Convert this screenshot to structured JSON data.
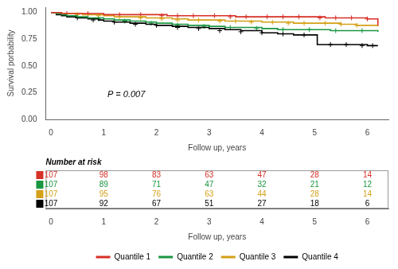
{
  "chart_data": [
    {
      "type": "line",
      "line_style": "step",
      "xlabel": "Follow up, years",
      "ylabel": "Survival porbability",
      "annotation": "P = 0.007",
      "xlim": [
        -0.1,
        6.4
      ],
      "xticks": [
        0,
        1,
        2,
        3,
        4,
        5,
        6
      ],
      "ylim": [
        0.0,
        1.05
      ],
      "yticks": [
        {
          "value": 0.0,
          "label": "0.00"
        },
        {
          "value": 0.25,
          "label": "0.25"
        },
        {
          "value": 0.5,
          "label": "0.50"
        },
        {
          "value": 0.75,
          "label": "0.75"
        },
        {
          "value": 1.0,
          "label": "1.00"
        }
      ],
      "grid": false,
      "legend": "bottom",
      "series": [
        {
          "name": "Quantile 1",
          "color": "#d73027",
          "x": [
            0.0,
            0.05,
            0.1,
            0.2,
            0.4,
            0.6,
            0.8,
            1.0,
            1.2,
            1.5,
            1.8,
            2.0,
            2.2,
            2.5,
            2.8,
            3.0,
            3.2,
            3.5,
            3.8,
            4.0,
            4.3,
            4.6,
            5.0,
            5.2,
            5.5,
            5.8,
            6.0,
            6.2
          ],
          "values": [
            1.0,
            1.0,
            1.0,
            0.99,
            0.99,
            0.99,
            0.99,
            0.98,
            0.98,
            0.98,
            0.98,
            0.98,
            0.97,
            0.97,
            0.97,
            0.97,
            0.97,
            0.96,
            0.96,
            0.96,
            0.96,
            0.96,
            0.96,
            0.95,
            0.95,
            0.95,
            0.94,
            0.88
          ],
          "censors": {
            "x": [
              0.3,
              0.7,
              1.3,
              1.7,
              2.1,
              2.4,
              2.7,
              3.1,
              3.4,
              3.7,
              4.1,
              4.4,
              4.7,
              5.1,
              5.4,
              5.7,
              6.0
            ],
            "y": [
              0.99,
              0.99,
              0.98,
              0.98,
              0.97,
              0.97,
              0.97,
              0.97,
              0.96,
              0.96,
              0.96,
              0.96,
              0.96,
              0.95,
              0.95,
              0.95,
              0.94
            ]
          }
        },
        {
          "name": "Quantile 2",
          "color": "#1a9641",
          "x": [
            0.0,
            0.1,
            0.2,
            0.3,
            0.5,
            0.7,
            1.0,
            1.2,
            1.5,
            1.8,
            2.0,
            2.3,
            2.6,
            3.0,
            3.3,
            3.6,
            4.0,
            4.3,
            4.6,
            5.0,
            5.3,
            5.6,
            6.0,
            6.2
          ],
          "values": [
            1.0,
            0.99,
            0.98,
            0.97,
            0.96,
            0.95,
            0.94,
            0.93,
            0.92,
            0.91,
            0.9,
            0.89,
            0.88,
            0.87,
            0.86,
            0.86,
            0.85,
            0.84,
            0.84,
            0.84,
            0.83,
            0.83,
            0.83,
            0.82
          ],
          "censors": {
            "x": [
              0.9,
              1.4,
              1.9,
              2.4,
              2.9,
              3.4,
              3.9,
              4.4,
              4.9,
              5.4,
              5.9
            ],
            "y": [
              0.94,
              0.92,
              0.9,
              0.88,
              0.87,
              0.86,
              0.85,
              0.84,
              0.84,
              0.83,
              0.83
            ]
          }
        },
        {
          "name": "Quantile 3",
          "color": "#d4a017",
          "x": [
            0.0,
            0.1,
            0.2,
            0.4,
            0.6,
            0.8,
            1.0,
            1.2,
            1.5,
            1.8,
            2.0,
            2.3,
            2.6,
            3.0,
            3.3,
            3.6,
            4.0,
            4.3,
            4.6,
            5.0,
            5.2,
            5.5,
            5.8,
            6.0,
            6.2
          ],
          "values": [
            1.0,
            1.0,
            0.99,
            0.99,
            0.98,
            0.98,
            0.97,
            0.96,
            0.96,
            0.95,
            0.95,
            0.94,
            0.93,
            0.93,
            0.92,
            0.92,
            0.91,
            0.91,
            0.9,
            0.9,
            0.9,
            0.89,
            0.88,
            0.88,
            0.87
          ],
          "censors": {
            "x": [
              0.5,
              0.9,
              1.3,
              1.7,
              2.1,
              2.4,
              2.8,
              3.2,
              3.5,
              3.8,
              4.2,
              4.5,
              4.8,
              5.2,
              5.5,
              5.8
            ],
            "y": [
              0.98,
              0.97,
              0.96,
              0.95,
              0.94,
              0.93,
              0.93,
              0.92,
              0.92,
              0.91,
              0.91,
              0.9,
              0.9,
              0.9,
              0.89,
              0.88
            ]
          }
        },
        {
          "name": "Quantile 4",
          "color": "#000000",
          "x": [
            0.0,
            0.1,
            0.2,
            0.3,
            0.5,
            0.7,
            0.9,
            1.0,
            1.2,
            1.5,
            1.8,
            2.0,
            2.3,
            2.6,
            3.0,
            3.3,
            3.6,
            4.0,
            4.3,
            4.6,
            5.0,
            5.05,
            5.5,
            5.8,
            6.0,
            6.2
          ],
          "values": [
            1.0,
            0.98,
            0.97,
            0.96,
            0.95,
            0.94,
            0.93,
            0.92,
            0.91,
            0.9,
            0.89,
            0.88,
            0.87,
            0.86,
            0.85,
            0.84,
            0.83,
            0.81,
            0.8,
            0.79,
            0.79,
            0.7,
            0.7,
            0.7,
            0.69,
            0.69
          ],
          "censors": {
            "x": [
              0.5,
              0.8,
              1.2,
              1.6,
              2.0,
              2.4,
              2.8,
              3.2,
              3.6,
              4.0,
              4.4,
              4.8,
              5.3,
              5.6,
              5.9,
              6.1
            ],
            "y": [
              0.95,
              0.93,
              0.91,
              0.89,
              0.88,
              0.86,
              0.85,
              0.83,
              0.82,
              0.81,
              0.8,
              0.79,
              0.7,
              0.7,
              0.69,
              0.69
            ]
          }
        }
      ]
    },
    {
      "type": "table",
      "title": "Number at risk",
      "xlabel": "Follow up, years",
      "xlim": [
        -0.1,
        6.4
      ],
      "xticks": [
        0,
        1,
        2,
        3,
        4,
        5,
        6
      ],
      "x": [
        0,
        1,
        2,
        3,
        4,
        5,
        6
      ],
      "series": [
        {
          "color": "#d73027",
          "values": [
            107,
            98,
            83,
            63,
            47,
            28,
            14
          ]
        },
        {
          "color": "#1a9641",
          "values": [
            107,
            89,
            71,
            47,
            32,
            21,
            12
          ]
        },
        {
          "color": "#d4a017",
          "values": [
            107,
            95,
            76,
            63,
            44,
            28,
            14
          ]
        },
        {
          "color": "#000000",
          "values": [
            107,
            92,
            67,
            51,
            27,
            18,
            6
          ]
        }
      ]
    }
  ]
}
